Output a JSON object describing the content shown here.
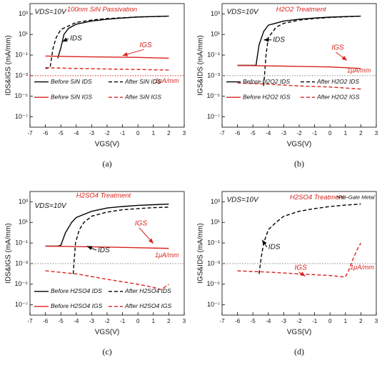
{
  "chart_data": [
    {
      "type": "line",
      "title": "100nm SiN Passivation",
      "vds_label": "VDS=10V",
      "ids_label": "IDS",
      "igs_label": "IGS",
      "reference_value": 0.001,
      "reference_label": "1μA/mm",
      "reference_color": "#d9231d",
      "x_label": "VGS(V)",
      "y_label": "IDS&IGS (mA/mm)",
      "caption": "(a)",
      "log_y": true,
      "legend": "lower left",
      "xlim": [
        -7,
        3
      ],
      "xticks": [
        -7,
        -6,
        -5,
        -4,
        -3,
        -2,
        -1,
        0,
        1,
        2,
        3
      ],
      "ylim": [
        1e-08,
        10000
      ],
      "yticks": [
        {
          "value": 1000,
          "label": "10³"
        },
        {
          "value": 10,
          "label": "10¹"
        },
        {
          "value": 0.1,
          "label": "10⁻¹"
        },
        {
          "value": 0.001,
          "label": "10⁻³"
        },
        {
          "value": 1e-05,
          "label": "10⁻⁵"
        },
        {
          "value": 1e-07,
          "label": "10⁻⁷"
        }
      ],
      "series": [
        {
          "name": "Before SiN IDS",
          "color": "#000000",
          "line_style": "solid",
          "x": [
            -5.2,
            -5.0,
            -4.8,
            -4.5,
            -4,
            -3,
            -2,
            -1,
            0,
            1,
            2
          ],
          "values": [
            0.05,
            0.5,
            10,
            40,
            100,
            200,
            300,
            400,
            500,
            550,
            600
          ]
        },
        {
          "name": "After SiN IDS",
          "color": "#000000",
          "line_style": "dashed",
          "x": [
            -6,
            -5.7,
            -5.5,
            -5.3,
            -5,
            -4,
            -3,
            -2,
            -1,
            0,
            1,
            2
          ],
          "values": [
            0.005,
            0.006,
            0.5,
            5,
            30,
            150,
            250,
            350,
            420,
            500,
            550,
            600
          ]
        },
        {
          "name": "Before SiN IGS",
          "color": "#d9231d",
          "line_style": "solid",
          "x": [
            -6,
            -4,
            -2,
            0,
            2
          ],
          "values": [
            0.08,
            0.07,
            0.065,
            0.06,
            0.05
          ]
        },
        {
          "name": "After SiN IGS",
          "color": "#d9231d",
          "line_style": "dashed",
          "x": [
            -6,
            -4,
            -2,
            0,
            2
          ],
          "values": [
            0.006,
            0.005,
            0.0045,
            0.004,
            0.0035
          ]
        }
      ]
    },
    {
      "type": "line",
      "title": "H2O2 Treatment",
      "vds_label": "VDS=10V",
      "ids_label": "IDS",
      "igs_label": "IGS",
      "reference_value": 0.001,
      "reference_label": "1μA/mm",
      "reference_color": "#888888",
      "x_label": "VGS(V)",
      "y_label": "IGS&IDS (mA/mm)",
      "caption": "(b)",
      "log_y": true,
      "legend": "lower left",
      "xlim": [
        -7,
        3
      ],
      "xticks": [
        -7,
        -6,
        -5,
        -4,
        -3,
        -2,
        -1,
        0,
        1,
        2,
        3
      ],
      "ylim": [
        1e-08,
        10000
      ],
      "yticks": [
        {
          "value": 1000,
          "label": "10³"
        },
        {
          "value": 10,
          "label": "10¹"
        },
        {
          "value": 0.1,
          "label": "10⁻¹"
        },
        {
          "value": 0.001,
          "label": "10⁻³"
        },
        {
          "value": 1e-05,
          "label": "10⁻⁵"
        },
        {
          "value": 1e-07,
          "label": "10⁻⁷"
        }
      ],
      "series": [
        {
          "name": "Before H2O2 IDS",
          "color": "#000000",
          "line_style": "solid",
          "x": [
            -6,
            -5,
            -4.8,
            -4.6,
            -4.3,
            -4,
            -3,
            -2,
            -1,
            0,
            1,
            2
          ],
          "values": [
            0.01,
            0.01,
            0.01,
            1,
            20,
            80,
            200,
            300,
            400,
            480,
            550,
            600
          ]
        },
        {
          "name": "After H2O2 IDS",
          "color": "#000000",
          "line_style": "dashed",
          "x": [
            -4.3,
            -4.15,
            -4,
            -3.5,
            -3,
            -2,
            -1,
            0,
            1,
            2
          ],
          "values": [
            0.0001,
            0.1,
            5,
            50,
            120,
            250,
            350,
            450,
            520,
            600
          ]
        },
        {
          "name": "Before H2O2 IGS",
          "color": "#d9231d",
          "line_style": "solid",
          "x": [
            -6,
            -4,
            -2,
            0,
            2
          ],
          "values": [
            0.01,
            0.009,
            0.008,
            0.007,
            0.005
          ]
        },
        {
          "name": "After H2O2 IGS",
          "color": "#d9231d",
          "line_style": "dashed",
          "x": [
            -6,
            -4,
            -2,
            0,
            2
          ],
          "values": [
            0.0002,
            0.00015,
            0.0001,
            8e-05,
            5e-05
          ]
        }
      ]
    },
    {
      "type": "line",
      "title": "H2SO4 Treatment",
      "vds_label": "VDS=10V",
      "ids_label": "IDS",
      "igs_label": "IGS",
      "reference_value": 0.001,
      "reference_label": "1μA/mm",
      "reference_color": "#888888",
      "x_label": "VGS(V)",
      "y_label": "IDS&IGS (mA/mm)",
      "caption": "(c)",
      "log_y": true,
      "legend": "lower left",
      "xlim": [
        -7,
        3
      ],
      "xticks": [
        -7,
        -6,
        -5,
        -4,
        -3,
        -2,
        -1,
        0,
        1,
        2,
        3
      ],
      "ylim": [
        1e-08,
        10000
      ],
      "yticks": [
        {
          "value": 1000,
          "label": "10³"
        },
        {
          "value": 10,
          "label": "10¹"
        },
        {
          "value": 0.1,
          "label": "10⁻¹"
        },
        {
          "value": 0.001,
          "label": "10⁻³"
        },
        {
          "value": 1e-05,
          "label": "10⁻⁵"
        },
        {
          "value": 1e-07,
          "label": "10⁻⁷"
        }
      ],
      "series": [
        {
          "name": "Before H2SO4 IDS",
          "color": "#000000",
          "line_style": "solid",
          "x": [
            -6,
            -5.2,
            -5,
            -4.7,
            -4.3,
            -4,
            -3,
            -2,
            -1,
            0,
            1,
            2
          ],
          "values": [
            0.05,
            0.05,
            0.06,
            1,
            10,
            30,
            120,
            250,
            350,
            450,
            520,
            600
          ]
        },
        {
          "name": "After H2SO4 IDS",
          "color": "#000000",
          "line_style": "dashed",
          "x": [
            -4.2,
            -4.05,
            -3.8,
            -3.5,
            -3,
            -2,
            -1,
            0,
            1,
            2
          ],
          "values": [
            0.0001,
            0.1,
            2,
            10,
            40,
            100,
            170,
            220,
            270,
            300
          ]
        },
        {
          "name": "Before H2SO4 IGS",
          "color": "#d9231d",
          "line_style": "solid",
          "x": [
            -6,
            -4,
            -2,
            0,
            2
          ],
          "values": [
            0.05,
            0.045,
            0.04,
            0.035,
            0.03
          ]
        },
        {
          "name": "After H2SO4 IGS",
          "color": "#d9231d",
          "line_style": "dashed",
          "x": [
            -6,
            -4,
            -2,
            0,
            1,
            1.5,
            1.8,
            2
          ],
          "values": [
            0.0002,
            0.0001,
            3e-05,
            1e-05,
            5e-06,
            3e-06,
            6e-06,
            1e-05
          ]
        }
      ]
    },
    {
      "type": "line",
      "title": "H2SO4 Treatment",
      "footnote": "*Pre-Gate Metal",
      "vds_label": "VDS=10V",
      "ids_label": "IDS",
      "igs_label": "IGS",
      "reference_value": 0.001,
      "reference_label": "1μA/mm",
      "reference_color": "#888888",
      "x_label": "VGS(V)",
      "y_label": "IGS&IDS (mA/mm)",
      "caption": "(d)",
      "log_y": true,
      "xlim": [
        -7,
        3
      ],
      "xticks": [
        -7,
        -6,
        -5,
        -4,
        -3,
        -2,
        -1,
        0,
        1,
        2,
        3
      ],
      "ylim": [
        1e-08,
        10000
      ],
      "yticks": [
        {
          "value": 1000,
          "label": "10³"
        },
        {
          "value": 10,
          "label": "10¹"
        },
        {
          "value": 0.1,
          "label": "10⁻¹"
        },
        {
          "value": 0.001,
          "label": "10⁻³"
        },
        {
          "value": 1e-05,
          "label": "10⁻⁵"
        },
        {
          "value": 1e-07,
          "label": "10⁻⁷"
        }
      ],
      "series": [
        {
          "color": "#000000",
          "line_style": "dashed",
          "x": [
            -4.6,
            -4.45,
            -4.3,
            -4,
            -3.5,
            -3,
            -2,
            -1,
            0,
            1,
            2
          ],
          "values": [
            0.0001,
            0.005,
            0.1,
            2,
            10,
            40,
            120,
            220,
            350,
            480,
            600
          ]
        },
        {
          "color": "#d9231d",
          "line_style": "dashed",
          "x": [
            -6,
            -4,
            -2,
            0,
            1,
            1.2,
            1.5,
            1.8,
            2
          ],
          "values": [
            0.0002,
            0.00015,
            0.0001,
            7e-05,
            5e-05,
            0.0002,
            0.003,
            0.03,
            0.1
          ]
        }
      ]
    }
  ]
}
